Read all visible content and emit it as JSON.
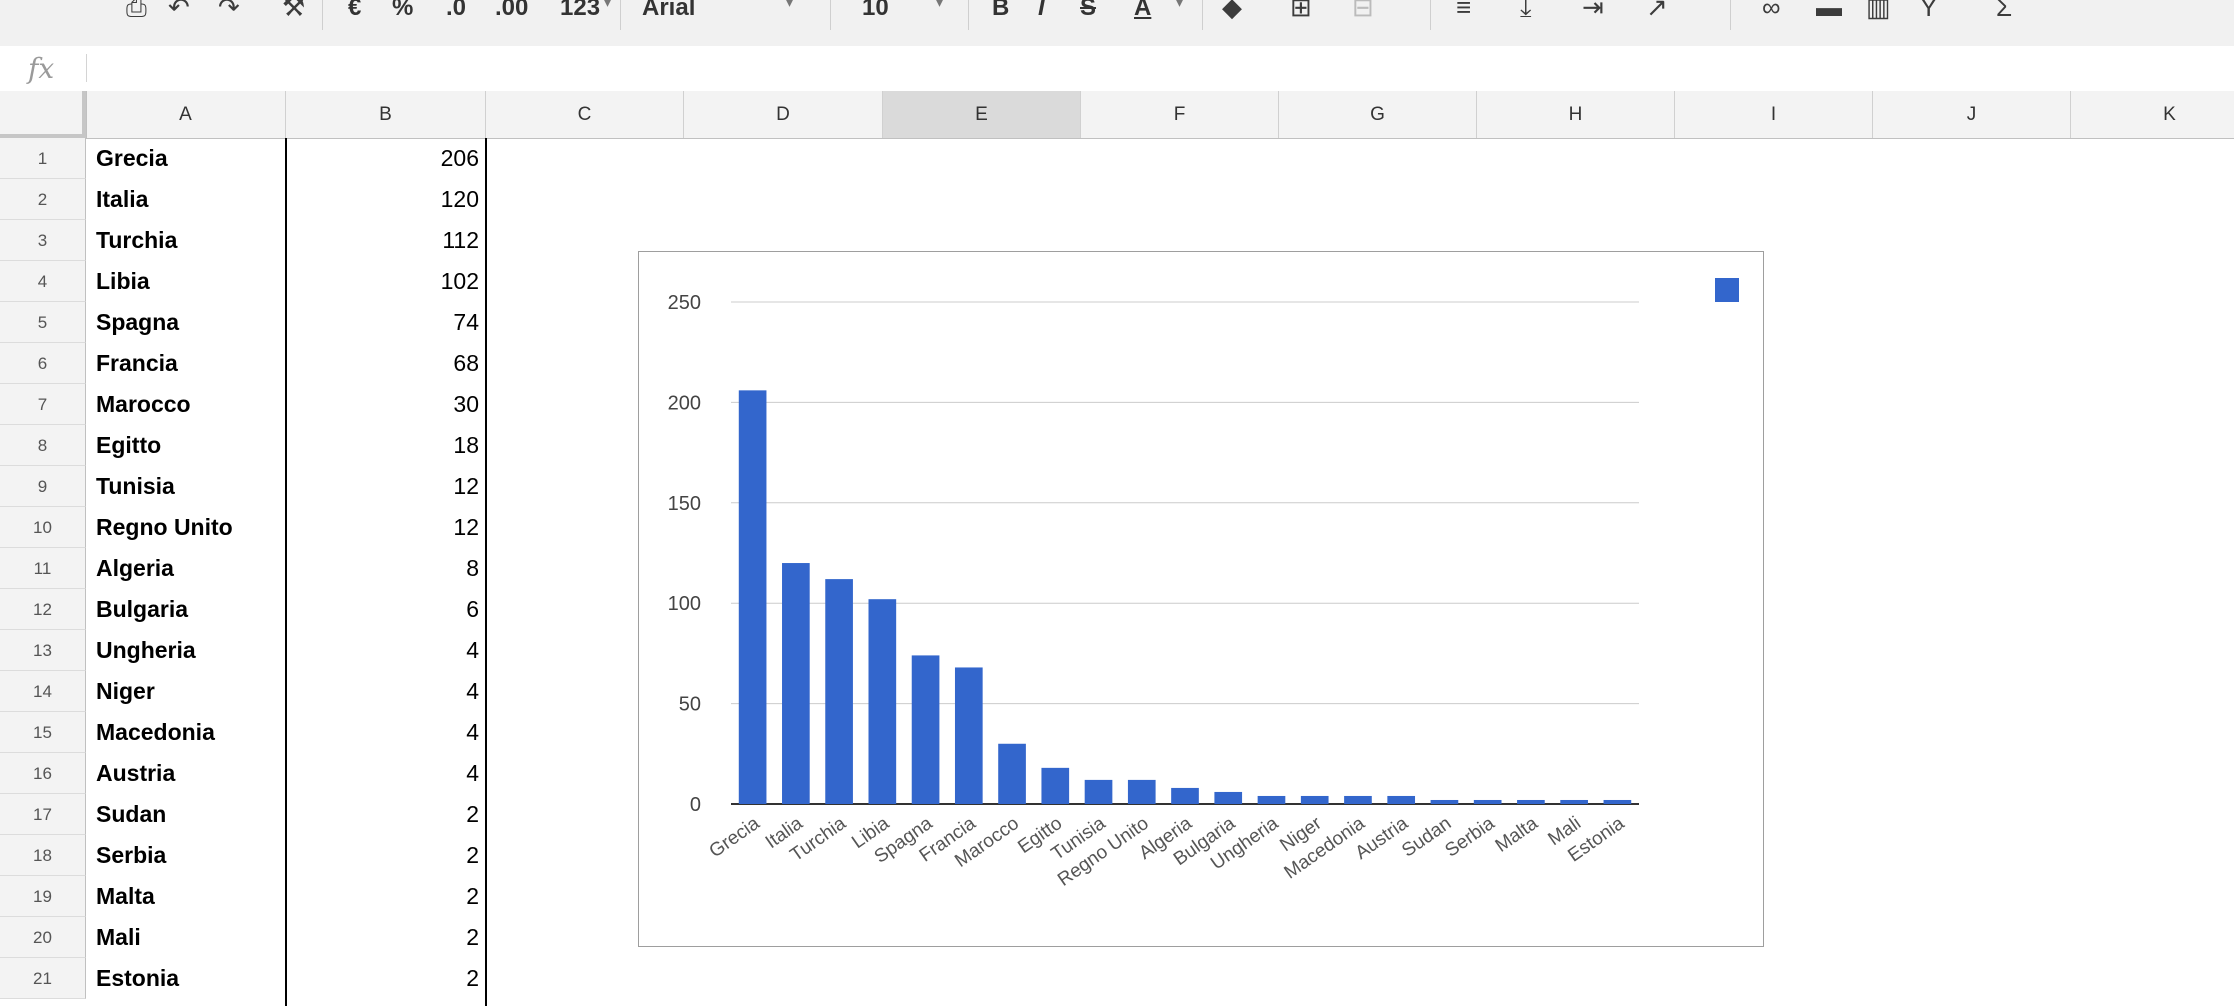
{
  "toolbar": {
    "currency_symbol": "€",
    "percent_symbol": "%",
    "decrease_decimals": ".0",
    "increase_decimals": ".00",
    "more_formats": "123",
    "font": "Arial",
    "font_size": "10",
    "bold": "B",
    "italic": "I",
    "strikethrough": "S",
    "text_color": "A"
  },
  "formula_bar": {
    "fx_label": "fx",
    "value": ""
  },
  "columns": [
    "A",
    "B",
    "C",
    "D",
    "E",
    "F",
    "G",
    "H",
    "I",
    "J",
    "K"
  ],
  "selected_column": "E",
  "rows": [
    {
      "num": "1",
      "country": "Grecia",
      "value": "206"
    },
    {
      "num": "2",
      "country": "Italia",
      "value": "120"
    },
    {
      "num": "3",
      "country": "Turchia",
      "value": "112"
    },
    {
      "num": "4",
      "country": "Libia",
      "value": "102"
    },
    {
      "num": "5",
      "country": "Spagna",
      "value": "74"
    },
    {
      "num": "6",
      "country": "Francia",
      "value": "68"
    },
    {
      "num": "7",
      "country": "Marocco",
      "value": "30"
    },
    {
      "num": "8",
      "country": "Egitto",
      "value": "18"
    },
    {
      "num": "9",
      "country": "Tunisia",
      "value": "12"
    },
    {
      "num": "10",
      "country": "Regno Unito",
      "value": "12"
    },
    {
      "num": "11",
      "country": "Algeria",
      "value": "8"
    },
    {
      "num": "12",
      "country": "Bulgaria",
      "value": "6"
    },
    {
      "num": "13",
      "country": "Ungheria",
      "value": "4"
    },
    {
      "num": "14",
      "country": "Niger",
      "value": "4"
    },
    {
      "num": "15",
      "country": "Macedonia",
      "value": "4"
    },
    {
      "num": "16",
      "country": "Austria",
      "value": "4"
    },
    {
      "num": "17",
      "country": "Sudan",
      "value": "2"
    },
    {
      "num": "18",
      "country": "Serbia",
      "value": "2"
    },
    {
      "num": "19",
      "country": "Malta",
      "value": "2"
    },
    {
      "num": "20",
      "country": "Mali",
      "value": "2"
    },
    {
      "num": "21",
      "country": "Estonia",
      "value": "2"
    }
  ],
  "chart_data": {
    "type": "bar",
    "categories": [
      "Grecia",
      "Italia",
      "Turchia",
      "Libia",
      "Spagna",
      "Francia",
      "Marocco",
      "Egitto",
      "Tunisia",
      "Regno Unito",
      "Algeria",
      "Bulgaria",
      "Ungheria",
      "Niger",
      "Macedonia",
      "Austria",
      "Sudan",
      "Serbia",
      "Malta",
      "Mali",
      "Estonia"
    ],
    "values": [
      206,
      120,
      112,
      102,
      74,
      68,
      30,
      18,
      12,
      12,
      8,
      6,
      4,
      4,
      4,
      4,
      2,
      2,
      2,
      2,
      2
    ],
    "title": "",
    "xlabel": "",
    "ylabel": "",
    "ylim": [
      0,
      250
    ],
    "yticks": [
      0,
      50,
      100,
      150,
      200,
      250
    ],
    "grid": true,
    "legend": "top-right",
    "bar_color": "#3366cc"
  }
}
